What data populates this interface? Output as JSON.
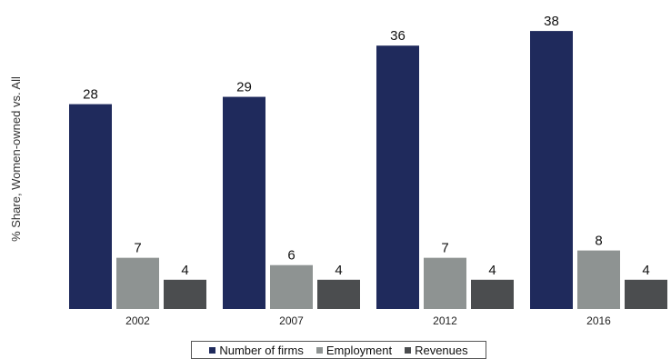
{
  "chart_data": {
    "type": "bar",
    "title": "",
    "ylabel": "% Share, Women-owned vs. All",
    "xlabel": "",
    "categories": [
      "2002",
      "2007",
      "2012",
      "2016"
    ],
    "series": [
      {
        "name": "Number of firms",
        "values": [
          28,
          29,
          36,
          38
        ],
        "color": "#1f2a5c"
      },
      {
        "name": "Employment",
        "values": [
          7,
          6,
          7,
          8
        ],
        "color": "#8e9392"
      },
      {
        "name": "Revenues",
        "values": [
          4,
          4,
          4,
          4
        ],
        "color": "#4b4d4f"
      }
    ],
    "ylim": [
      0,
      40
    ],
    "grid": false,
    "legend_position": "bottom"
  }
}
